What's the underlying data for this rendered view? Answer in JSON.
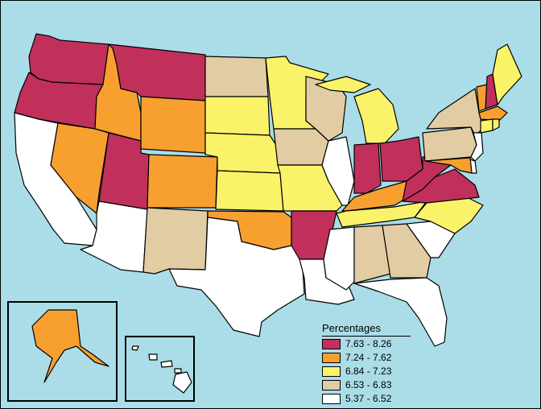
{
  "legend": {
    "title": "Percentages",
    "classes": [
      {
        "label": "7.63 - 8.26",
        "color": "#c0305a"
      },
      {
        "label": "7.24 - 7.62",
        "color": "#f7a030"
      },
      {
        "label": "6.84 - 7.23",
        "color": "#faf36a"
      },
      {
        "label": "6.53 - 6.83",
        "color": "#e2cca4"
      },
      {
        "label": "5.37 - 6.52",
        "color": "#ffffff"
      }
    ]
  },
  "colors": {
    "water": "#aadde8",
    "class_1": "#c0305a",
    "class_2": "#f7a030",
    "class_3": "#faf36a",
    "class_4": "#e2cca4",
    "class_5": "#ffffff"
  },
  "states": [
    {
      "name": "WA",
      "class": 1
    },
    {
      "name": "OR",
      "class": 1
    },
    {
      "name": "CA",
      "class": 5
    },
    {
      "name": "ID",
      "class": 2
    },
    {
      "name": "NV",
      "class": 2
    },
    {
      "name": "MT",
      "class": 1
    },
    {
      "name": "WY",
      "class": 2
    },
    {
      "name": "UT",
      "class": 1
    },
    {
      "name": "AZ",
      "class": 5
    },
    {
      "name": "CO",
      "class": 2
    },
    {
      "name": "NM",
      "class": 4
    },
    {
      "name": "ND",
      "class": 4
    },
    {
      "name": "SD",
      "class": 3
    },
    {
      "name": "NE",
      "class": 3
    },
    {
      "name": "KS",
      "class": 3
    },
    {
      "name": "OK",
      "class": 2
    },
    {
      "name": "TX",
      "class": 5
    },
    {
      "name": "MN",
      "class": 3
    },
    {
      "name": "IA",
      "class": 4
    },
    {
      "name": "MO",
      "class": 3
    },
    {
      "name": "AR",
      "class": 1
    },
    {
      "name": "LA",
      "class": 5
    },
    {
      "name": "WI",
      "class": 4
    },
    {
      "name": "IL",
      "class": 5
    },
    {
      "name": "MI",
      "class": 3
    },
    {
      "name": "IN",
      "class": 1
    },
    {
      "name": "OH",
      "class": 1
    },
    {
      "name": "KY",
      "class": 2
    },
    {
      "name": "TN",
      "class": 3
    },
    {
      "name": "MS",
      "class": 5
    },
    {
      "name": "AL",
      "class": 4
    },
    {
      "name": "GA",
      "class": 4
    },
    {
      "name": "FL",
      "class": 5
    },
    {
      "name": "SC",
      "class": 5
    },
    {
      "name": "NC",
      "class": 3
    },
    {
      "name": "VA",
      "class": 1
    },
    {
      "name": "WV",
      "class": 1
    },
    {
      "name": "PA",
      "class": 4
    },
    {
      "name": "NY",
      "class": 4
    },
    {
      "name": "VT",
      "class": 2
    },
    {
      "name": "NH",
      "class": 1
    },
    {
      "name": "ME",
      "class": 3
    },
    {
      "name": "MA",
      "class": 2
    },
    {
      "name": "CT",
      "class": 3
    },
    {
      "name": "RI",
      "class": 3
    },
    {
      "name": "NJ",
      "class": 5
    },
    {
      "name": "DE",
      "class": 5
    },
    {
      "name": "MD",
      "class": 2
    },
    {
      "name": "AK",
      "class": 2
    },
    {
      "name": "HI",
      "class": 5
    }
  ]
}
